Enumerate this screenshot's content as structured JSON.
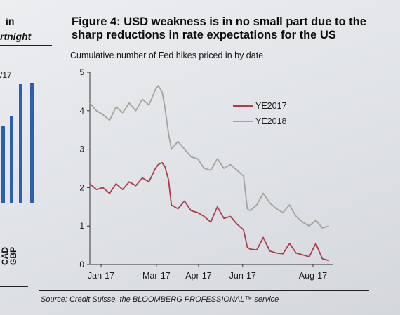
{
  "left_fragments": {
    "line1": "in",
    "line2": "rtnight",
    "line3": "/17",
    "currency1": "CAD",
    "currency2": "GBP"
  },
  "figure": {
    "title": "Figure 4: USD weakness is in no small part due to the sharp reductions in rate expectations for the US",
    "subtitle": "Cumulative number of Fed hikes priced in by date",
    "source": "Source: Credit Suisse, the BLOOMBERG PROFESSIONAL™ service"
  },
  "colors": {
    "ye2017": "#b23a4a",
    "ye2018": "#a3a59a",
    "bar_blue": "#2d5fb0"
  },
  "chart_data": {
    "type": "line",
    "title": "Figure 4: USD weakness is in no small part due to the sharp reductions in rate expectations for the US",
    "subtitle": "Cumulative number of Fed hikes priced in by date",
    "xlabel": "",
    "ylabel": "",
    "ylim": [
      0,
      5
    ],
    "yticks": [
      0,
      1,
      2,
      3,
      4,
      5
    ],
    "x_tick_labels": [
      "Jan-17",
      "Mar-17",
      "Apr-17",
      "Jun-17",
      "Aug-17"
    ],
    "x_tick_dates": [
      "2017-01-01",
      "2017-03-01",
      "2017-04-15",
      "2017-06-01",
      "2017-08-15"
    ],
    "xlim": [
      "2016-12-20",
      "2017-09-05"
    ],
    "legend_position": "right",
    "grid": false,
    "series": [
      {
        "name": "YE2017",
        "color_key": "ye2017",
        "x": [
          "2016-12-20",
          "2016-12-27",
          "2017-01-03",
          "2017-01-10",
          "2017-01-17",
          "2017-01-24",
          "2017-01-31",
          "2017-02-07",
          "2017-02-14",
          "2017-02-21",
          "2017-02-28",
          "2017-03-03",
          "2017-03-07",
          "2017-03-10",
          "2017-03-14",
          "2017-03-17",
          "2017-03-24",
          "2017-03-31",
          "2017-04-07",
          "2017-04-14",
          "2017-04-21",
          "2017-04-28",
          "2017-05-05",
          "2017-05-12",
          "2017-05-19",
          "2017-05-26",
          "2017-06-02",
          "2017-06-06",
          "2017-06-09",
          "2017-06-16",
          "2017-06-23",
          "2017-06-30",
          "2017-07-07",
          "2017-07-14",
          "2017-07-21",
          "2017-07-28",
          "2017-08-04",
          "2017-08-11",
          "2017-08-18",
          "2017-08-25",
          "2017-09-01"
        ],
        "values": [
          2.1,
          1.95,
          2.0,
          1.85,
          2.1,
          1.95,
          2.15,
          2.05,
          2.25,
          2.15,
          2.5,
          2.6,
          2.65,
          2.55,
          2.2,
          1.55,
          1.45,
          1.65,
          1.4,
          1.35,
          1.25,
          1.1,
          1.5,
          1.2,
          1.25,
          1.05,
          0.9,
          0.45,
          0.4,
          0.38,
          0.7,
          0.35,
          0.3,
          0.28,
          0.55,
          0.3,
          0.25,
          0.2,
          0.55,
          0.15,
          0.1
        ]
      },
      {
        "name": "YE2018",
        "color_key": "ye2018",
        "x": [
          "2016-12-20",
          "2016-12-27",
          "2017-01-03",
          "2017-01-10",
          "2017-01-17",
          "2017-01-24",
          "2017-01-31",
          "2017-02-07",
          "2017-02-14",
          "2017-02-21",
          "2017-02-28",
          "2017-03-03",
          "2017-03-07",
          "2017-03-10",
          "2017-03-14",
          "2017-03-17",
          "2017-03-24",
          "2017-03-31",
          "2017-04-07",
          "2017-04-14",
          "2017-04-21",
          "2017-04-28",
          "2017-05-05",
          "2017-05-12",
          "2017-05-19",
          "2017-05-26",
          "2017-06-02",
          "2017-06-06",
          "2017-06-09",
          "2017-06-16",
          "2017-06-23",
          "2017-06-30",
          "2017-07-07",
          "2017-07-14",
          "2017-07-21",
          "2017-07-28",
          "2017-08-04",
          "2017-08-11",
          "2017-08-18",
          "2017-08-25",
          "2017-09-01"
        ],
        "values": [
          4.2,
          4.0,
          3.9,
          3.75,
          4.1,
          3.95,
          4.2,
          4.0,
          4.3,
          4.15,
          4.55,
          4.65,
          4.5,
          4.1,
          3.4,
          3.0,
          3.2,
          3.0,
          2.8,
          2.75,
          2.5,
          2.45,
          2.75,
          2.5,
          2.6,
          2.45,
          2.3,
          1.45,
          1.4,
          1.55,
          1.85,
          1.6,
          1.45,
          1.35,
          1.55,
          1.25,
          1.1,
          1.0,
          1.15,
          0.95,
          1.0
        ]
      }
    ]
  }
}
